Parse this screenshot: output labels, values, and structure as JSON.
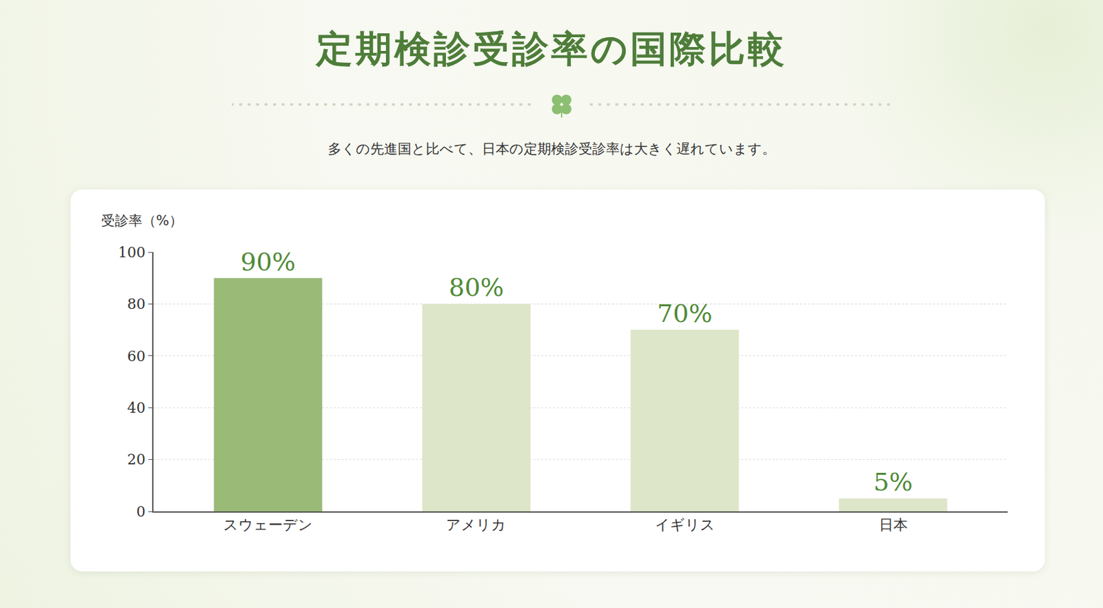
{
  "chart_data": {
    "type": "bar",
    "title": "定期検診受診率の国際比較",
    "subtitle": "多くの先進国と比べて、日本の定期検診受診率は大きく遅れています。",
    "y_label": "受診率（%）",
    "categories": [
      "スウェーデン",
      "アメリカ",
      "イギリス",
      "日本"
    ],
    "values": [
      90,
      80,
      70,
      5
    ],
    "value_labels": [
      "90%",
      "80%",
      "70%",
      "5%"
    ],
    "colors": [
      "#9aba78",
      "#dde6c8",
      "#dde6c8",
      "#dde6c8"
    ],
    "ylim": [
      0,
      100
    ],
    "yticks": [
      0,
      20,
      40,
      60,
      80,
      100
    ],
    "grid": true,
    "data_labels": true
  }
}
